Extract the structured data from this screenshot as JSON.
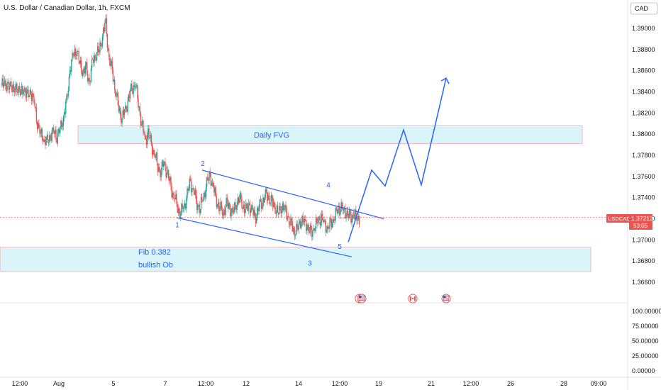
{
  "header": {
    "title": "U.S. Dollar / Canadian Dollar, 1h, FXCM",
    "currency": "CAD"
  },
  "price_tag": {
    "symbol": "USDCAD",
    "price": "1.37212",
    "countdown": "53:05"
  },
  "chart_data": {
    "type": "candlestick",
    "title": "U.S. Dollar / Canadian Dollar, 1h, FXCM",
    "price_axis": {
      "ticks": [
        "1.39000",
        "1.38800",
        "1.38600",
        "1.38400",
        "1.38200",
        "1.38000",
        "1.37800",
        "1.37600",
        "1.37400",
        "1.37200",
        "1.37000",
        "1.36800",
        "1.36600"
      ],
      "range": [
        1.3645,
        1.3925
      ]
    },
    "indicator_axis": {
      "ticks": [
        "100.00000",
        "75.00000",
        "50.00000",
        "25.00000",
        "0.00000"
      ],
      "range": [
        0,
        100
      ]
    },
    "time_axis": {
      "ticks": [
        "12:00",
        "Aug",
        "5",
        "7",
        "12:00",
        "12",
        "14",
        "12:00",
        "19",
        "21",
        "12:00",
        "26",
        "28",
        "09:00"
      ]
    },
    "zones": [
      {
        "label": "Daily FVG",
        "top": 1.3808,
        "bottom": 1.3791,
        "color": "#2962ff"
      },
      {
        "label_lines": [
          "Fib 0.382",
          "bullish Ob"
        ],
        "top": 1.3693,
        "bottom": 1.367,
        "color": "#2962ff"
      }
    ],
    "wave_labels": [
      "1",
      "2",
      "3",
      "4",
      "5"
    ],
    "wave_points": [
      {
        "label": "1",
        "price": 1.372
      },
      {
        "label": "2",
        "price": 1.3766
      },
      {
        "label": "3",
        "price": 1.3689
      },
      {
        "label": "4",
        "price": 1.3738
      },
      {
        "label": "5",
        "price": 1.3697
      }
    ],
    "channel": {
      "upper": [
        [
          1.3766
        ],
        [
          1.372
        ]
      ],
      "lower": [
        [
          1.3721
        ],
        [
          1.3684
        ]
      ]
    },
    "projection": [
      1.3698,
      1.3766,
      1.3751,
      1.3804,
      1.3752,
      1.3853
    ],
    "current_price": 1.37212,
    "candles": {
      "up_color": "#26a69a",
      "down_color": "#ef5350",
      "closes": [
        1.3845,
        1.385,
        1.3842,
        1.3848,
        1.384,
        1.3846,
        1.3838,
        1.3843,
        1.3835,
        1.384,
        1.383,
        1.3812,
        1.38,
        1.3795,
        1.3792,
        1.3798,
        1.3803,
        1.3798,
        1.3805,
        1.3815,
        1.383,
        1.386,
        1.3875,
        1.388,
        1.3868,
        1.3858,
        1.3862,
        1.3848,
        1.387,
        1.3875,
        1.388,
        1.3893,
        1.3905,
        1.387,
        1.386,
        1.384,
        1.3825,
        1.3815,
        1.3823,
        1.3833,
        1.3843,
        1.3848,
        1.383,
        1.381,
        1.3795,
        1.38,
        1.379,
        1.378,
        1.377,
        1.3765,
        1.3773,
        1.376,
        1.375,
        1.374,
        1.3732,
        1.3725,
        1.3732,
        1.3742,
        1.3755,
        1.3745,
        1.3735,
        1.373,
        1.3742,
        1.3752,
        1.3762,
        1.3748,
        1.3738,
        1.373,
        1.3726,
        1.3733,
        1.373,
        1.3725,
        1.3735,
        1.374,
        1.3733,
        1.3728,
        1.3733,
        1.3726,
        1.3722,
        1.3732,
        1.3736,
        1.3742,
        1.374,
        1.3735,
        1.373,
        1.3726,
        1.3733,
        1.3728,
        1.372,
        1.3712,
        1.3708,
        1.3712,
        1.372,
        1.3716,
        1.3712,
        1.3705,
        1.3712,
        1.3718,
        1.3722,
        1.3716,
        1.371,
        1.3715,
        1.372,
        1.3728,
        1.3732,
        1.3728,
        1.3725,
        1.372,
        1.3724,
        1.3721
      ]
    }
  }
}
